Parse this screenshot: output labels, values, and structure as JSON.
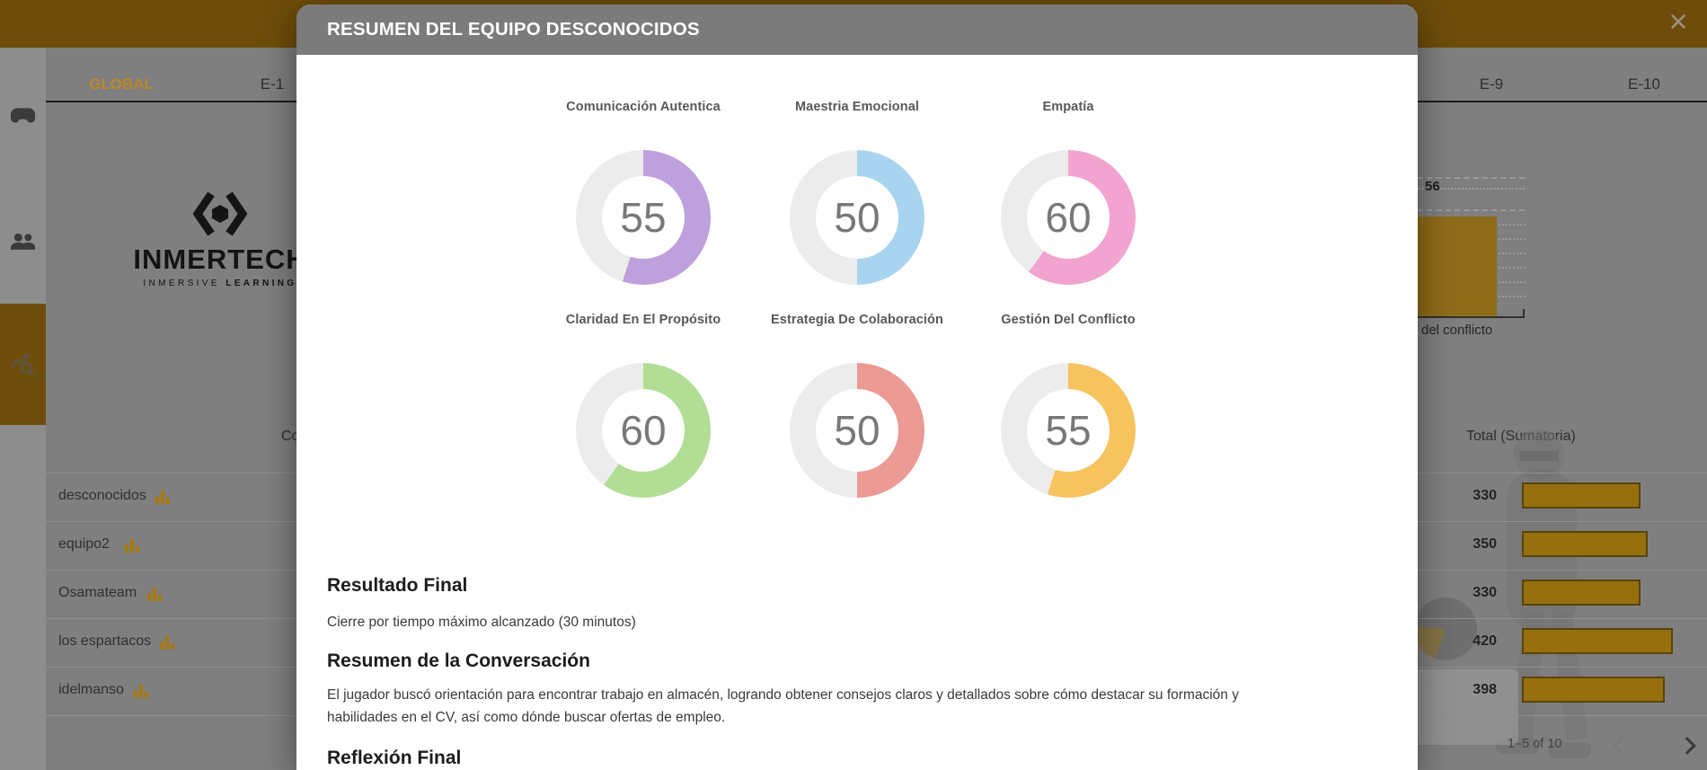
{
  "topbar": {
    "close_icon": "×"
  },
  "sidebar": {
    "items": [
      {
        "icon": "gamepad-icon",
        "selected": false
      },
      {
        "icon": "people-icon",
        "selected": false
      },
      {
        "icon": "analytics-search-icon",
        "selected": true
      }
    ],
    "selected_color": "#6F4E0D"
  },
  "tabs": {
    "items": [
      {
        "label": "GLOBAL",
        "active": true
      },
      {
        "label": "E-1",
        "active": false
      },
      {
        "label": "E-9",
        "active": false
      },
      {
        "label": "E-10",
        "active": false
      }
    ],
    "active_color": "#B88929"
  },
  "brand": {
    "name": "INMERTECH",
    "tagline1": "INMERSIVE",
    "tagline2": "LEARNING"
  },
  "table": {
    "partial_header": "Co",
    "total_header": "Total (Sumatoria)",
    "teams": [
      {
        "name": "desconocidos",
        "total": 330
      },
      {
        "name": "equipo2",
        "total": 350
      },
      {
        "name": "Osamateam",
        "total": 330
      },
      {
        "name": "los espartacos",
        "total": 420
      },
      {
        "name": "idelmanso",
        "total": 398
      }
    ],
    "bar_color": "#966F0F"
  },
  "mini_chart": {
    "value": 56,
    "label": "del conflicto",
    "bar_color": "#8F6C1A"
  },
  "pagination": {
    "range": "1–5 of 10"
  },
  "modal": {
    "title": "RESUMEN DEL EQUIPO DESCONOCIDOS",
    "track_color": "#ECECEC",
    "metrics": [
      {
        "label": "Comunicación Autentica",
        "value": 55,
        "color": "#BEA0DC"
      },
      {
        "label": "Maestria Emocional",
        "value": 50,
        "color": "#A8D4F0"
      },
      {
        "label": "Empatía",
        "value": 60,
        "color": "#F2A4D0"
      },
      {
        "label": "Claridad En El Propósito",
        "value": 60,
        "color": "#B2DD94"
      },
      {
        "label": "Estrategia De Colaboración",
        "value": 50,
        "color": "#EC9A94"
      },
      {
        "label": "Gestión Del Conflicto",
        "value": 55,
        "color": "#F7C35E"
      }
    ],
    "sections": [
      {
        "heading": "Resultado Final",
        "body": "Cierre por tiempo máximo alcanzado (30 minutos)"
      },
      {
        "heading": "Resumen de la Conversación",
        "body": "El jugador buscó orientación para encontrar trabajo en almacén, logrando obtener consejos claros y detallados sobre cómo destacar su formación y habilidades en el CV, así como dónde buscar ofertas de empleo."
      },
      {
        "heading": "Reflexión Final",
        "body": ""
      }
    ]
  }
}
